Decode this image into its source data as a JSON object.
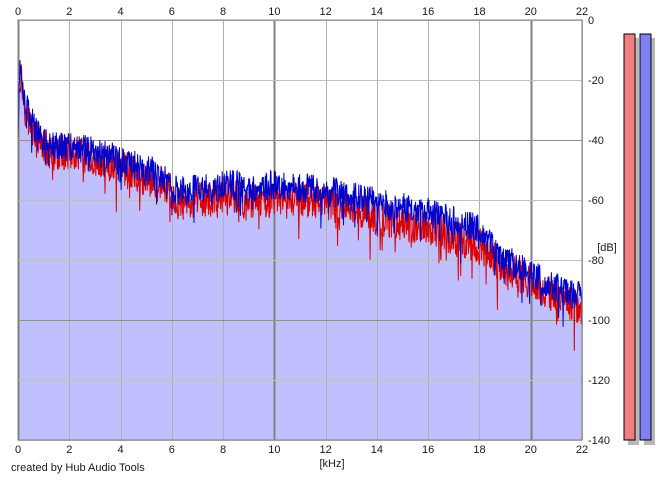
{
  "chart_data": {
    "type": "area",
    "title": "",
    "xlabel": "[kHz]",
    "ylabel": "[dB]",
    "xlim": [
      0,
      22
    ],
    "ylim": [
      -140,
      0
    ],
    "grid": true,
    "x_ticks": [
      0,
      2,
      4,
      6,
      8,
      10,
      12,
      14,
      16,
      18,
      20,
      22
    ],
    "y_ticks": [
      0,
      -20,
      -40,
      -60,
      -80,
      -100,
      -120,
      -140
    ],
    "fill_color": "#c0c0ff",
    "series": [
      {
        "color": "#dd0000",
        "x": [
          0,
          0.05,
          0.1,
          0.15,
          0.2,
          0.25,
          0.3,
          0.4,
          0.5,
          0.6,
          0.8,
          1,
          1.25,
          1.5,
          1.75,
          2,
          2.5,
          3,
          3.5,
          4,
          4.5,
          5,
          5.5,
          5.9,
          6,
          6.5,
          7,
          7.5,
          8,
          8.5,
          9,
          9.5,
          10,
          10.5,
          11,
          11.5,
          12,
          12.5,
          13,
          13.5,
          14,
          14.5,
          15,
          15.5,
          16,
          16.5,
          17,
          17.5,
          18,
          18.5,
          19,
          19.5,
          20,
          20.5,
          21,
          21.5,
          22
        ],
        "y": [
          -40,
          -22,
          -18,
          -20,
          -25,
          -28,
          -30,
          -33,
          -35,
          -37,
          -40,
          -42,
          -44,
          -45,
          -44,
          -44,
          -45,
          -47,
          -48,
          -49,
          -51,
          -53,
          -54,
          -57,
          -60,
          -61,
          -60,
          -60,
          -58,
          -59,
          -61,
          -60,
          -60,
          -59,
          -60,
          -60,
          -61,
          -63,
          -63,
          -64,
          -66,
          -67,
          -68,
          -69,
          -70,
          -71,
          -73,
          -74,
          -75,
          -79,
          -83,
          -85,
          -87,
          -90,
          -92,
          -94,
          -96
        ],
        "noise": 6
      },
      {
        "color": "#0000cc",
        "x": [
          0,
          0.05,
          0.1,
          0.15,
          0.2,
          0.25,
          0.3,
          0.4,
          0.5,
          0.6,
          0.8,
          1,
          1.25,
          1.5,
          1.75,
          2,
          2.5,
          3,
          3.5,
          4,
          4.5,
          5,
          5.5,
          5.9,
          6,
          6.5,
          7,
          7.5,
          8,
          8.5,
          9,
          9.5,
          10,
          10.5,
          11,
          11.5,
          12,
          12.5,
          13,
          13.5,
          14,
          14.5,
          15,
          15.5,
          16,
          16.5,
          17,
          17.5,
          18,
          18.5,
          19,
          19.5,
          20,
          20.5,
          21,
          21.5,
          22
        ],
        "y": [
          -40,
          -20,
          -16,
          -18,
          -23,
          -26,
          -28,
          -31,
          -33,
          -35,
          -38,
          -40,
          -42,
          -42,
          -42,
          -42,
          -43,
          -44,
          -45,
          -47,
          -48,
          -50,
          -51,
          -54,
          -56,
          -57,
          -56,
          -56,
          -55,
          -55,
          -57,
          -56,
          -55,
          -55,
          -56,
          -56,
          -56,
          -58,
          -59,
          -59,
          -61,
          -62,
          -62,
          -64,
          -64,
          -66,
          -67,
          -68,
          -70,
          -75,
          -80,
          -82,
          -84,
          -87,
          -89,
          -91,
          -92
        ],
        "noise": 5
      }
    ]
  },
  "meters": [
    {
      "channel": "left",
      "color": "#f08080"
    },
    {
      "channel": "right",
      "color": "#8080f0"
    }
  ],
  "credit": "created by Hub Audio Tools"
}
